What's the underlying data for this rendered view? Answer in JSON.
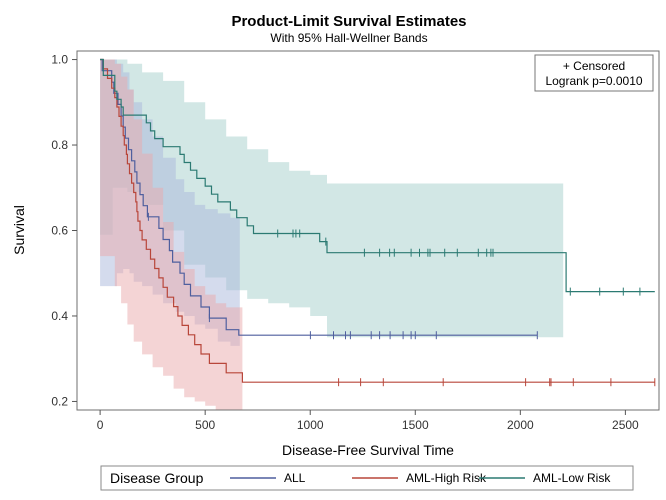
{
  "chart_data": {
    "type": "line",
    "subtype": "kaplan-meier step curves with confidence bands",
    "title": "Product-Limit Survival Estimates",
    "subtitle": "With 95% Hall-Wellner Bands",
    "xlabel": "Disease-Free Survival Time",
    "ylabel": "Survival",
    "xlim": [
      -110,
      2660
    ],
    "ylim": [
      0.18,
      1.02
    ],
    "xticks": [
      0,
      500,
      1000,
      1500,
      2000,
      2500
    ],
    "xtick_labels": [
      "0",
      "500",
      "1000",
      "1500",
      "2000",
      "2500"
    ],
    "yticks": [
      0.2,
      0.4,
      0.6,
      0.8,
      1.0
    ],
    "ytick_labels": [
      "0.2",
      "0.4",
      "0.6",
      "0.8",
      "1.0"
    ],
    "inset": {
      "censored": "+ Censored",
      "logrank": "Logrank p=0.0010",
      "position": "top-right"
    },
    "legend": {
      "title": "Disease Group",
      "position": "bottom"
    },
    "series": [
      {
        "name": "ALL",
        "color": "#4f5f9e",
        "band_color": "#a9b8dc",
        "curve": [
          [
            0,
            1.0
          ],
          [
            10,
            0.974
          ],
          [
            55,
            0.947
          ],
          [
            65,
            0.921
          ],
          [
            85,
            0.895
          ],
          [
            100,
            0.868
          ],
          [
            110,
            0.842
          ],
          [
            120,
            0.816
          ],
          [
            135,
            0.789
          ],
          [
            150,
            0.763
          ],
          [
            165,
            0.737
          ],
          [
            175,
            0.711
          ],
          [
            190,
            0.684
          ],
          [
            205,
            0.658
          ],
          [
            225,
            0.632
          ],
          [
            280,
            0.605
          ],
          [
            300,
            0.579
          ],
          [
            330,
            0.553
          ],
          [
            345,
            0.526
          ],
          [
            380,
            0.5
          ],
          [
            400,
            0.474
          ],
          [
            430,
            0.447
          ],
          [
            480,
            0.421
          ],
          [
            520,
            0.395
          ],
          [
            600,
            0.368
          ],
          [
            660,
            0.355
          ],
          [
            2081,
            0.355
          ]
        ],
        "band": [
          [
            0,
            1.0,
            0.47
          ],
          [
            40,
            1.0,
            0.47
          ],
          [
            80,
            0.99,
            0.5
          ],
          [
            110,
            0.97,
            0.51
          ],
          [
            140,
            0.93,
            0.5
          ],
          [
            160,
            0.9,
            0.48
          ],
          [
            200,
            0.86,
            0.47
          ],
          [
            250,
            0.82,
            0.45
          ],
          [
            300,
            0.77,
            0.43
          ],
          [
            360,
            0.72,
            0.41
          ],
          [
            400,
            0.69,
            0.4
          ],
          [
            450,
            0.66,
            0.38
          ],
          [
            500,
            0.65,
            0.37
          ],
          [
            560,
            0.64,
            0.34
          ],
          [
            620,
            0.63,
            0.33
          ],
          [
            665,
            0.63,
            0.33
          ],
          [
            665,
            0.0,
            0.0
          ]
        ],
        "censored": [
          230,
          520,
          1001,
          1111,
          1168,
          1191,
          1290,
          1330,
          1380,
          1442,
          1480,
          1500,
          1600,
          2081
        ]
      },
      {
        "name": "AML-High Risk",
        "color": "#b8463a",
        "band_color": "#e9a9ac",
        "curve": [
          [
            0,
            1.0
          ],
          [
            15,
            0.978
          ],
          [
            35,
            0.956
          ],
          [
            55,
            0.933
          ],
          [
            70,
            0.911
          ],
          [
            80,
            0.889
          ],
          [
            90,
            0.867
          ],
          [
            100,
            0.844
          ],
          [
            110,
            0.822
          ],
          [
            115,
            0.8
          ],
          [
            125,
            0.778
          ],
          [
            130,
            0.756
          ],
          [
            140,
            0.733
          ],
          [
            150,
            0.711
          ],
          [
            160,
            0.689
          ],
          [
            170,
            0.667
          ],
          [
            175,
            0.644
          ],
          [
            180,
            0.622
          ],
          [
            190,
            0.6
          ],
          [
            200,
            0.578
          ],
          [
            220,
            0.556
          ],
          [
            240,
            0.533
          ],
          [
            260,
            0.511
          ],
          [
            280,
            0.489
          ],
          [
            300,
            0.467
          ],
          [
            320,
            0.444
          ],
          [
            350,
            0.422
          ],
          [
            370,
            0.4
          ],
          [
            390,
            0.378
          ],
          [
            420,
            0.356
          ],
          [
            450,
            0.333
          ],
          [
            480,
            0.311
          ],
          [
            520,
            0.289
          ],
          [
            600,
            0.267
          ],
          [
            677,
            0.245
          ],
          [
            2640,
            0.245
          ]
        ],
        "band": [
          [
            0,
            1.0,
            0.54
          ],
          [
            40,
            1.0,
            0.54
          ],
          [
            70,
            0.99,
            0.47
          ],
          [
            100,
            0.96,
            0.43
          ],
          [
            130,
            0.93,
            0.38
          ],
          [
            160,
            0.86,
            0.34
          ],
          [
            200,
            0.78,
            0.31
          ],
          [
            250,
            0.7,
            0.28
          ],
          [
            300,
            0.62,
            0.26
          ],
          [
            350,
            0.55,
            0.23
          ],
          [
            400,
            0.51,
            0.21
          ],
          [
            450,
            0.47,
            0.2
          ],
          [
            500,
            0.45,
            0.19
          ],
          [
            550,
            0.43,
            0.18
          ],
          [
            600,
            0.42,
            0.18
          ],
          [
            677,
            0.41,
            0.18
          ],
          [
            677,
            0.0,
            0.0
          ]
        ],
        "censored": [
          1135,
          1240,
          1348,
          1633,
          2025,
          2140,
          2146,
          2252,
          2431,
          2640
        ]
      },
      {
        "name": "AML-Low Risk",
        "color": "#2b7a72",
        "band_color": "#a6cfcb",
        "curve": [
          [
            0,
            1.0
          ],
          [
            15,
            0.963
          ],
          [
            70,
            0.926
          ],
          [
            80,
            0.907
          ],
          [
            100,
            0.889
          ],
          [
            110,
            0.87
          ],
          [
            220,
            0.852
          ],
          [
            240,
            0.833
          ],
          [
            260,
            0.815
          ],
          [
            300,
            0.796
          ],
          [
            380,
            0.778
          ],
          [
            400,
            0.759
          ],
          [
            430,
            0.741
          ],
          [
            460,
            0.722
          ],
          [
            500,
            0.704
          ],
          [
            530,
            0.685
          ],
          [
            560,
            0.667
          ],
          [
            620,
            0.648
          ],
          [
            650,
            0.63
          ],
          [
            700,
            0.611
          ],
          [
            730,
            0.593
          ],
          [
            1045,
            0.574
          ],
          [
            1080,
            0.548
          ],
          [
            2204,
            0.548
          ],
          [
            2218,
            0.457
          ],
          [
            2640,
            0.457
          ]
        ],
        "band": [
          [
            0,
            1.0,
            0.59
          ],
          [
            60,
            1.0,
            0.7
          ],
          [
            130,
            0.99,
            0.69
          ],
          [
            200,
            0.97,
            0.66
          ],
          [
            300,
            0.95,
            0.6
          ],
          [
            400,
            0.9,
            0.52
          ],
          [
            500,
            0.86,
            0.49
          ],
          [
            600,
            0.82,
            0.46
          ],
          [
            700,
            0.79,
            0.44
          ],
          [
            800,
            0.76,
            0.43
          ],
          [
            900,
            0.74,
            0.42
          ],
          [
            1000,
            0.73,
            0.4
          ],
          [
            1070,
            0.73,
            0.4
          ],
          [
            1080,
            0.71,
            0.35
          ],
          [
            2204,
            0.71,
            0.35
          ],
          [
            2204,
            0.0,
            0.0
          ]
        ],
        "censored": [
          845,
          918,
          932,
          950,
          1074,
          1258,
          1330,
          1378,
          1400,
          1480,
          1520,
          1560,
          1570,
          1640,
          1700,
          1800,
          1840,
          1860,
          1870,
          2238,
          2378,
          2490,
          2569
        ]
      }
    ]
  }
}
